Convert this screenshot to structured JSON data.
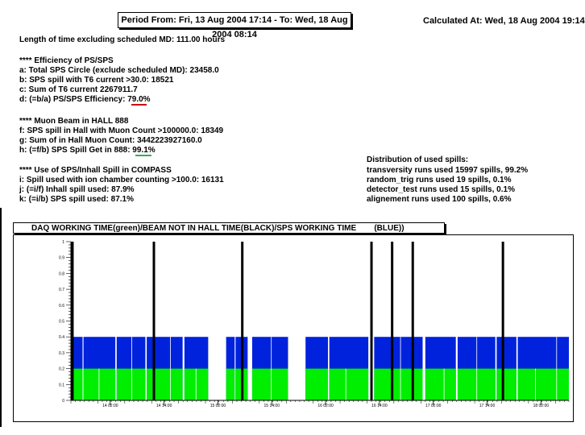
{
  "header": {
    "period": "Period From: Fri, 13 Aug 2004 17:14 - To: Wed, 18 Aug 2004 08:14",
    "calculated": "Calculated At: Wed, 18 Aug 2004 19:14"
  },
  "summary": {
    "length": "Length of time excluding scheduled MD: 111.00 hours",
    "eff_title": "**** Efficiency of PS/SPS",
    "a": "a: Total SPS Circle (exclude scheduled MD): 23458.0",
    "b": "b: SPS spill with T6 current >30.0: 18521",
    "c": "c: Sum of T6 current 2267911.7",
    "d": "d: (=b/a) PS/SPS Efficiency: 79.0%",
    "muon_title": "**** Muon Beam in HALL 888",
    "f": "f: SPS spill in Hall with Muon Count >100000.0: 18349",
    "g": "g: Sum of in Hall Muon Count: 3442223927160.0",
    "h": "h: (=f/b) SPS Spill Get in 888: 99.1%",
    "use_title": "**** Use of SPS/Inhall Spill in COMPASS",
    "i": "i: Spill used with ion chamber counting >100.0: 16131",
    "j": "j: (=i/f) Inhall spill used: 87.9%",
    "k": "k: (=i/b) SPS spill used: 87.1%"
  },
  "distribution": {
    "title": "Distribution of used spills:",
    "rows": [
      "transversity runs used 15997 spills,  99.2%",
      "random_trig runs used 19 spills,  0.1%",
      "detector_test runs used 15 spills,  0.1%",
      "alignement runs used 100 spills,  0.6%"
    ]
  },
  "colors": {
    "daq": "#00ee00",
    "beam_not_in_hall": "#000000",
    "sps_working": "#0022dd",
    "underline_red": "#cc0000",
    "underline_green": "#33aa66"
  },
  "chart_data": {
    "type": "area",
    "title": "DAQ WORKING TIME(green)/BEAM NOT IN HALL TIME(BLACK)/SPS WORKING TIME        (BLUE))",
    "ylim": [
      0,
      1
    ],
    "y_ticks": [
      "0",
      "0.1",
      "0.2",
      "0.3",
      "0.4",
      "0.5",
      "0.6",
      "0.7",
      "0.8",
      "0.9",
      "1"
    ],
    "x_tick_labels": [
      "14 02:00",
      "14 14:00",
      "15 02:00",
      "15 14:00",
      "16 02:00",
      "16 14:00",
      "17 02:00",
      "17 14:00",
      "18 02:00"
    ],
    "x_ticks_hours_from_start": [
      8.77,
      20.77,
      32.77,
      44.77,
      56.77,
      68.77,
      80.77,
      92.77,
      104.77
    ],
    "x_range_hours": [
      0,
      111
    ],
    "series": [
      {
        "name": "SPS WORKING TIME",
        "color_key": "sps_working",
        "value": 0.4,
        "segments_hours": [
          [
            0.0,
            2.6
          ],
          [
            2.8,
            9.9
          ],
          [
            10.2,
            16.6
          ],
          [
            16.9,
            24.9
          ],
          [
            25.3,
            30.6
          ],
          [
            34.6,
            36.5
          ],
          [
            36.7,
            39.4
          ],
          [
            40.4,
            48.4
          ],
          [
            52.3,
            57.3
          ],
          [
            57.6,
            66.3
          ],
          [
            67.6,
            78.4
          ],
          [
            79.0,
            85.8
          ],
          [
            86.2,
            94.6
          ],
          [
            94.9,
            99.3
          ],
          [
            99.6,
            111.0
          ]
        ]
      },
      {
        "name": "DAQ WORKING TIME",
        "color_key": "daq",
        "value": 0.2,
        "segments_hours": [
          [
            0.0,
            2.6
          ],
          [
            2.8,
            9.9
          ],
          [
            10.2,
            16.6
          ],
          [
            16.9,
            24.9
          ],
          [
            25.3,
            30.6
          ],
          [
            34.6,
            36.5
          ],
          [
            36.7,
            39.4
          ],
          [
            40.4,
            48.4
          ],
          [
            52.3,
            57.3
          ],
          [
            57.6,
            66.3
          ],
          [
            67.6,
            78.4
          ],
          [
            79.0,
            85.8
          ],
          [
            86.2,
            94.6
          ],
          [
            94.9,
            99.3
          ],
          [
            99.6,
            111.0
          ]
        ]
      },
      {
        "name": "BEAM NOT IN HALL TIME",
        "color_key": "beam_not_in_hall",
        "value": 1.0,
        "at_hours": [
          0.35,
          18.5,
          38.2,
          67.0,
          71.6,
          76.2,
          96.3
        ]
      }
    ]
  }
}
